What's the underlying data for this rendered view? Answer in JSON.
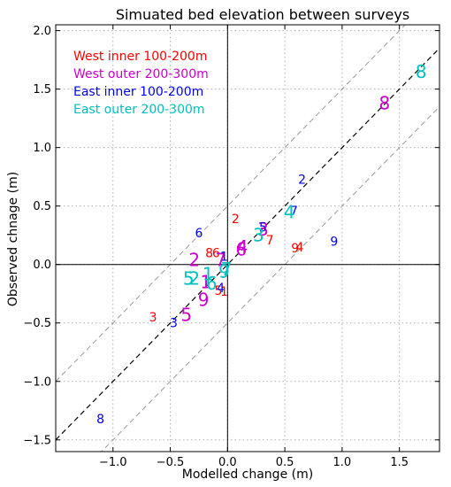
{
  "chart_data": {
    "type": "scatter",
    "title": "Simuated bed elevation between surveys",
    "xlabel": "Modelled change (m)",
    "ylabel": "Observed chnage (m)",
    "xlim": [
      -1.5,
      1.85
    ],
    "ylim": [
      -1.6,
      2.05
    ],
    "xticks": [
      -1.0,
      -0.5,
      0.0,
      0.5,
      1.0,
      1.5
    ],
    "yticks": [
      -1.5,
      -1.0,
      -0.5,
      0.0,
      0.5,
      1.0,
      1.5,
      2.0
    ],
    "grid": true,
    "legend_position": "top-left",
    "reference_lines": [
      {
        "kind": "1:1",
        "slope": 1,
        "intercept": 0,
        "color": "#000000",
        "style": "dashed"
      },
      {
        "kind": "upper bound",
        "slope": 1,
        "intercept": 0.5,
        "color": "#999999",
        "style": "dashed"
      },
      {
        "kind": "lower bound",
        "slope": 1,
        "intercept": -0.5,
        "color": "#999999",
        "style": "dashed"
      }
    ],
    "series": [
      {
        "name": "West inner 100-200m",
        "color": "#ff0000",
        "points": [
          {
            "label": "1",
            "x": -0.03,
            "y": -0.23
          },
          {
            "label": "2",
            "x": 0.07,
            "y": 0.39
          },
          {
            "label": "3",
            "x": -0.65,
            "y": -0.45
          },
          {
            "label": "4",
            "x": 0.63,
            "y": 0.15
          },
          {
            "label": "5",
            "x": -0.08,
            "y": -0.22
          },
          {
            "label": "6",
            "x": -0.1,
            "y": 0.1
          },
          {
            "label": "7",
            "x": 0.37,
            "y": 0.21
          },
          {
            "label": "8",
            "x": -0.16,
            "y": 0.1
          },
          {
            "label": "9",
            "x": 0.59,
            "y": 0.14
          }
        ]
      },
      {
        "name": "West outer 200-300m",
        "color": "#cc00cc",
        "points": [
          {
            "label": "1",
            "x": -0.19,
            "y": -0.15
          },
          {
            "label": "2",
            "x": -0.29,
            "y": 0.04
          },
          {
            "label": "3",
            "x": 0.31,
            "y": 0.3
          },
          {
            "label": "4",
            "x": 0.13,
            "y": 0.15
          },
          {
            "label": "5",
            "x": -0.36,
            "y": -0.43
          },
          {
            "label": "6",
            "x": 0.12,
            "y": 0.13
          },
          {
            "label": "7",
            "x": -0.06,
            "y": 0.04
          },
          {
            "label": "8",
            "x": 1.37,
            "y": 1.38
          },
          {
            "label": "9",
            "x": -0.21,
            "y": -0.3
          }
        ]
      },
      {
        "name": "East inner 100-200m",
        "color": "#0000ee",
        "points": [
          {
            "label": "1",
            "x": -0.03,
            "y": 0.07
          },
          {
            "label": "2",
            "x": 0.65,
            "y": 0.73
          },
          {
            "label": "3",
            "x": -0.47,
            "y": -0.5
          },
          {
            "label": "4",
            "x": -0.06,
            "y": -0.2
          },
          {
            "label": "5",
            "x": 0.31,
            "y": 0.32
          },
          {
            "label": "6",
            "x": -0.25,
            "y": 0.27
          },
          {
            "label": "7",
            "x": 0.58,
            "y": 0.46
          },
          {
            "label": "8",
            "x": -1.11,
            "y": -1.32
          },
          {
            "label": "9",
            "x": 0.93,
            "y": 0.2
          }
        ]
      },
      {
        "name": "East outer 200-300m",
        "color": "#00c0c0",
        "points": [
          {
            "label": "1",
            "x": -0.17,
            "y": -0.08
          },
          {
            "label": "2",
            "x": -0.29,
            "y": -0.12
          },
          {
            "label": "3",
            "x": 0.27,
            "y": 0.25
          },
          {
            "label": "4",
            "x": 0.54,
            "y": 0.45
          },
          {
            "label": "5",
            "x": -0.34,
            "y": -0.12
          },
          {
            "label": "6",
            "x": -0.14,
            "y": -0.16
          },
          {
            "label": "7",
            "x": -0.01,
            "y": -0.04
          },
          {
            "label": "8",
            "x": 1.69,
            "y": 1.65
          },
          {
            "label": "9",
            "x": -0.03,
            "y": -0.06
          }
        ]
      }
    ]
  }
}
